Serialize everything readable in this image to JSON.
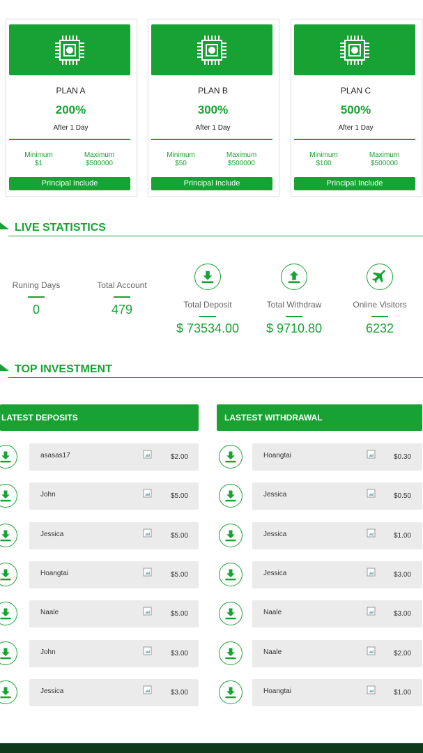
{
  "plans": [
    {
      "name": "PLAN A",
      "rate": "200%",
      "duration": "After 1 Day",
      "min_label": "Minimum",
      "min": "$1",
      "max_label": "Maximum",
      "max": "$500000",
      "button": "Principal Include"
    },
    {
      "name": "PLAN B",
      "rate": "300%",
      "duration": "After 1 Day",
      "min_label": "Minimum",
      "min": "$50",
      "max_label": "Maximum",
      "max": "$500000",
      "button": "Principal Include"
    },
    {
      "name": "PLAN C",
      "rate": "500%",
      "duration": "After 1 Day",
      "min_label": "Minimum",
      "min": "$100",
      "max_label": "Maximum",
      "max": "$500000",
      "button": "Principal Include"
    }
  ],
  "live_statistics": {
    "title": "LIVE STATISTICS",
    "stats": [
      {
        "label": "Runing Days",
        "value": "0"
      },
      {
        "label": "Total Account",
        "value": "479"
      },
      {
        "label": "Total Deposit",
        "value": "$ 73534.00"
      },
      {
        "label": "Total Withdraw",
        "value": "$ 9710.80"
      },
      {
        "label": "Online Visitors",
        "value": "6232"
      }
    ]
  },
  "top_investment": {
    "title": "TOP INVESTMENT"
  },
  "deposits": {
    "title": "LATEST DEPOSITS",
    "rows": [
      {
        "name": "asasas17",
        "amount": "$2.00"
      },
      {
        "name": "John",
        "amount": "$5.00"
      },
      {
        "name": "Jessica",
        "amount": "$5.00"
      },
      {
        "name": "Hoangtai",
        "amount": "$5.00"
      },
      {
        "name": "Naale",
        "amount": "$5.00"
      },
      {
        "name": "John",
        "amount": "$3.00"
      },
      {
        "name": "Jessica",
        "amount": "$3.00"
      }
    ]
  },
  "withdrawals": {
    "title": "LASTEST WITHDRAWAL",
    "rows": [
      {
        "name": "Hoangtai",
        "amount": "$0.30"
      },
      {
        "name": "Jessica",
        "amount": "$0.50"
      },
      {
        "name": "Jessica",
        "amount": "$1.00"
      },
      {
        "name": "Jessica",
        "amount": "$3.00"
      },
      {
        "name": "Naale",
        "amount": "$3.00"
      },
      {
        "name": "Naale",
        "amount": "$2.00"
      },
      {
        "name": "Hoangtai",
        "amount": "$1.00"
      }
    ]
  }
}
